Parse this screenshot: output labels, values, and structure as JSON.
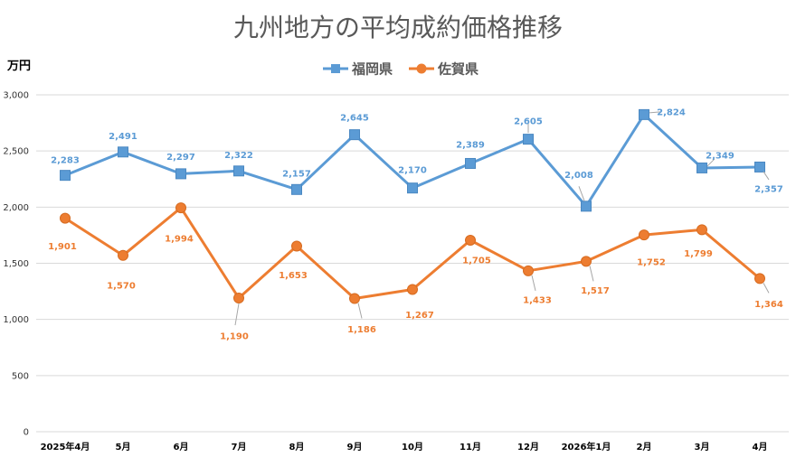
{
  "chart_data": {
    "type": "line",
    "title": "九州地方の平均成約価格推移",
    "ylabel": "万円",
    "ylim": [
      0,
      3000
    ],
    "yticks": [
      0,
      500,
      1000,
      1500,
      2000,
      2500,
      3000
    ],
    "ytick_labels": [
      "0",
      "500",
      "1,000",
      "1,500",
      "2,000",
      "2,500",
      "3,000"
    ],
    "grid": true,
    "legend_position": "top",
    "categories": [
      "2025年4月",
      "5月",
      "6月",
      "7月",
      "8月",
      "9月",
      "10月",
      "11月",
      "12月",
      "2026年1月",
      "2月",
      "3月",
      "4月"
    ],
    "series": [
      {
        "name": "福岡県",
        "color": "#5B9BD5",
        "marker": "square",
        "values": [
          2283,
          2491,
          2297,
          2322,
          2157,
          2645,
          2170,
          2389,
          2605,
          2008,
          2824,
          2349,
          2357
        ],
        "labels": [
          "2,283",
          "2,491",
          "2,297",
          "2,322",
          "2,157",
          "2,645",
          "2,170",
          "2,389",
          "2,605",
          "2,008",
          "2,824",
          "2,349",
          "2,357"
        ]
      },
      {
        "name": "佐賀県",
        "color": "#ED7D31",
        "marker": "circle",
        "values": [
          1901,
          1570,
          1994,
          1190,
          1653,
          1186,
          1267,
          1705,
          1433,
          1517,
          1752,
          1799,
          1364
        ],
        "labels": [
          "1,901",
          "1,570",
          "1,994",
          "1,190",
          "1,653",
          "1,186",
          "1,267",
          "1,705",
          "1,433",
          "1,517",
          "1,752",
          "1,799",
          "1,364"
        ]
      }
    ]
  }
}
